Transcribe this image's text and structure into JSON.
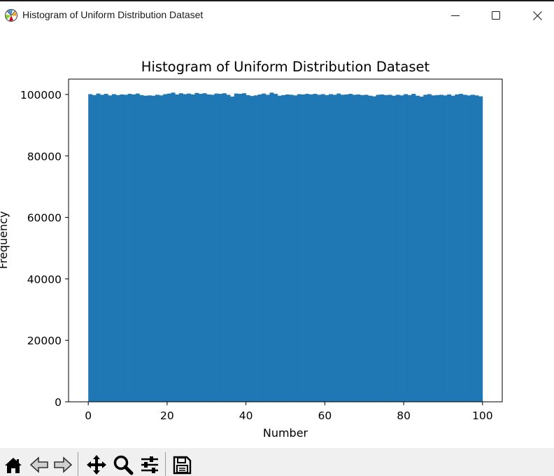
{
  "window": {
    "title": "Histogram of Uniform Distribution Dataset",
    "icons": {
      "app": "matplotlib-logo-icon",
      "minimize": "minimize-icon",
      "maximize": "maximize-icon",
      "close": "close-icon"
    }
  },
  "toolbar": {
    "buttons": [
      "home-icon",
      "back-arrow-icon",
      "forward-arrow-icon",
      "pan-move-icon",
      "zoom-magnifier-icon",
      "configure-subplots-icon",
      "save-floppy-icon"
    ]
  },
  "chart_data": {
    "type": "bar",
    "title": "Histogram of Uniform Distribution Dataset",
    "xlabel": "Number",
    "ylabel": "Frequency",
    "xlim": [
      -5,
      105
    ],
    "ylim": [
      0,
      105000
    ],
    "xticks": [
      "0",
      "20",
      "40",
      "60",
      "80",
      "100"
    ],
    "yticks": [
      "0",
      "20000",
      "40000",
      "60000",
      "80000",
      "100000"
    ],
    "bins": 100,
    "bin_range": [
      0,
      100
    ],
    "color": "#1f77b4",
    "values": [
      100100,
      99800,
      100300,
      99900,
      100200,
      99700,
      100100,
      99800,
      100000,
      99900,
      100200,
      100000,
      100300,
      99800,
      99600,
      99700,
      99600,
      99900,
      99700,
      100100,
      100300,
      100600,
      100000,
      100400,
      100100,
      100300,
      100000,
      100500,
      100200,
      100400,
      100000,
      99900,
      100300,
      100200,
      100400,
      99900,
      99300,
      100300,
      100200,
      100400,
      99800,
      99500,
      99700,
      100000,
      100300,
      99900,
      100600,
      100200,
      99600,
      99800,
      100000,
      99900,
      99700,
      100100,
      100000,
      100200,
      100000,
      100200,
      99900,
      100100,
      99800,
      100100,
      99900,
      100300,
      99900,
      100000,
      100200,
      99900,
      100000,
      99800,
      99900,
      99600,
      99400,
      99900,
      100000,
      99800,
      99900,
      99600,
      99900,
      99700,
      100100,
      99800,
      100200,
      99600,
      99300,
      99900,
      100100,
      99700,
      99800,
      99900,
      99700,
      100000,
      99600,
      100000,
      100200,
      99900,
      99700,
      99900,
      99700,
      99400
    ]
  }
}
